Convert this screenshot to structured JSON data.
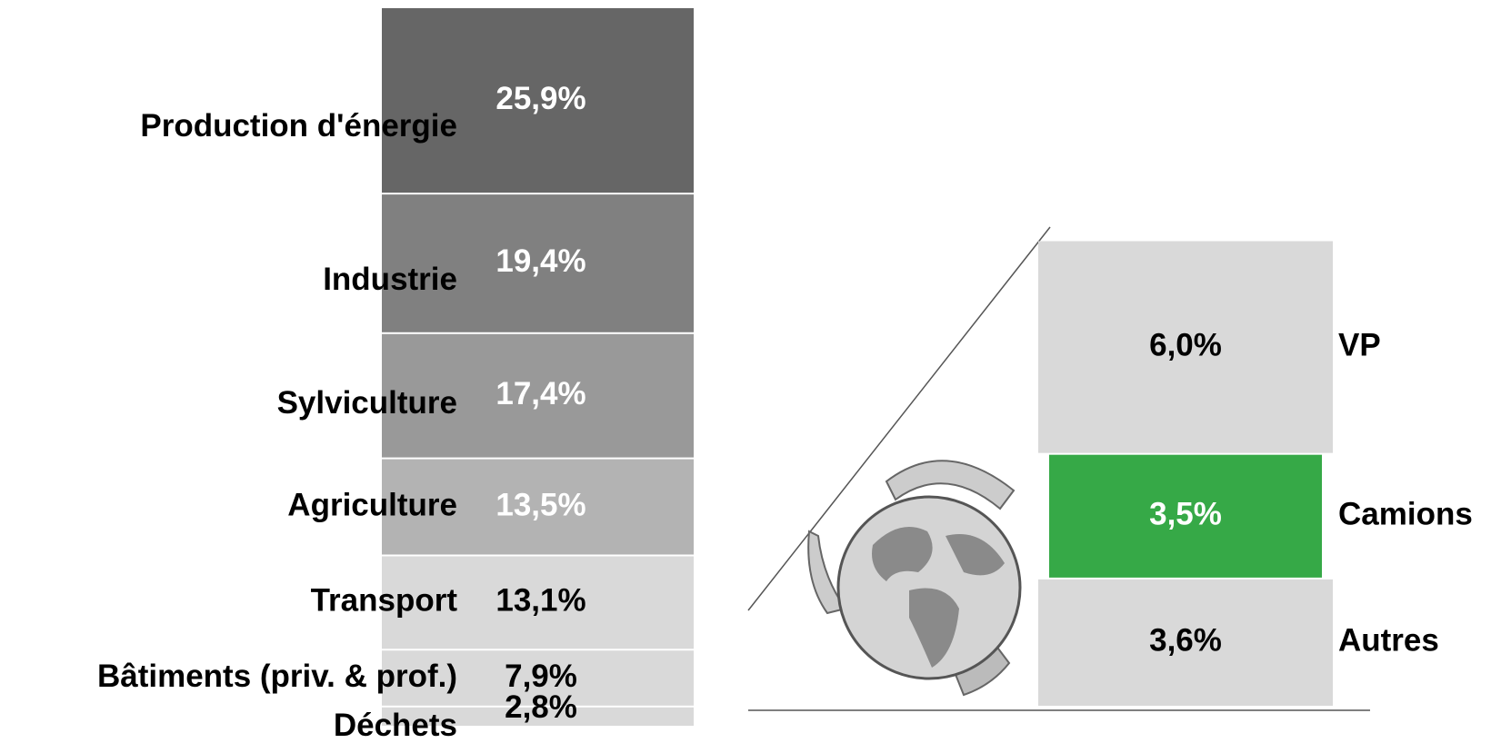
{
  "chart_data": [
    {
      "type": "stacked-column",
      "categories": [
        "Production d'énergie",
        "Industrie",
        "Sylviculture",
        "Agriculture",
        "Transport",
        "Bâtiments (priv. & prof.)",
        "Déchets"
      ],
      "values": [
        25.9,
        19.4,
        17.4,
        13.5,
        13.1,
        7.9,
        2.8
      ],
      "value_labels": [
        "25,9%",
        "19,4%",
        "17,4%",
        "13,5%",
        "13,1%",
        "7,9%",
        "2,8%"
      ],
      "colors": [
        "#666666",
        "#808080",
        "#999999",
        "#b3b3b3",
        "#d9d9d9",
        "#d9d9d9",
        "#d9d9d9"
      ]
    },
    {
      "type": "stacked-column",
      "categories": [
        "VP",
        "Camions",
        "Autres"
      ],
      "values": [
        6.0,
        3.5,
        3.6
      ],
      "value_labels": [
        "6,0%",
        "3,5%",
        "3,6%"
      ],
      "colors": [
        "#d9d9d9",
        "#36a947",
        "#d9d9d9"
      ]
    }
  ]
}
